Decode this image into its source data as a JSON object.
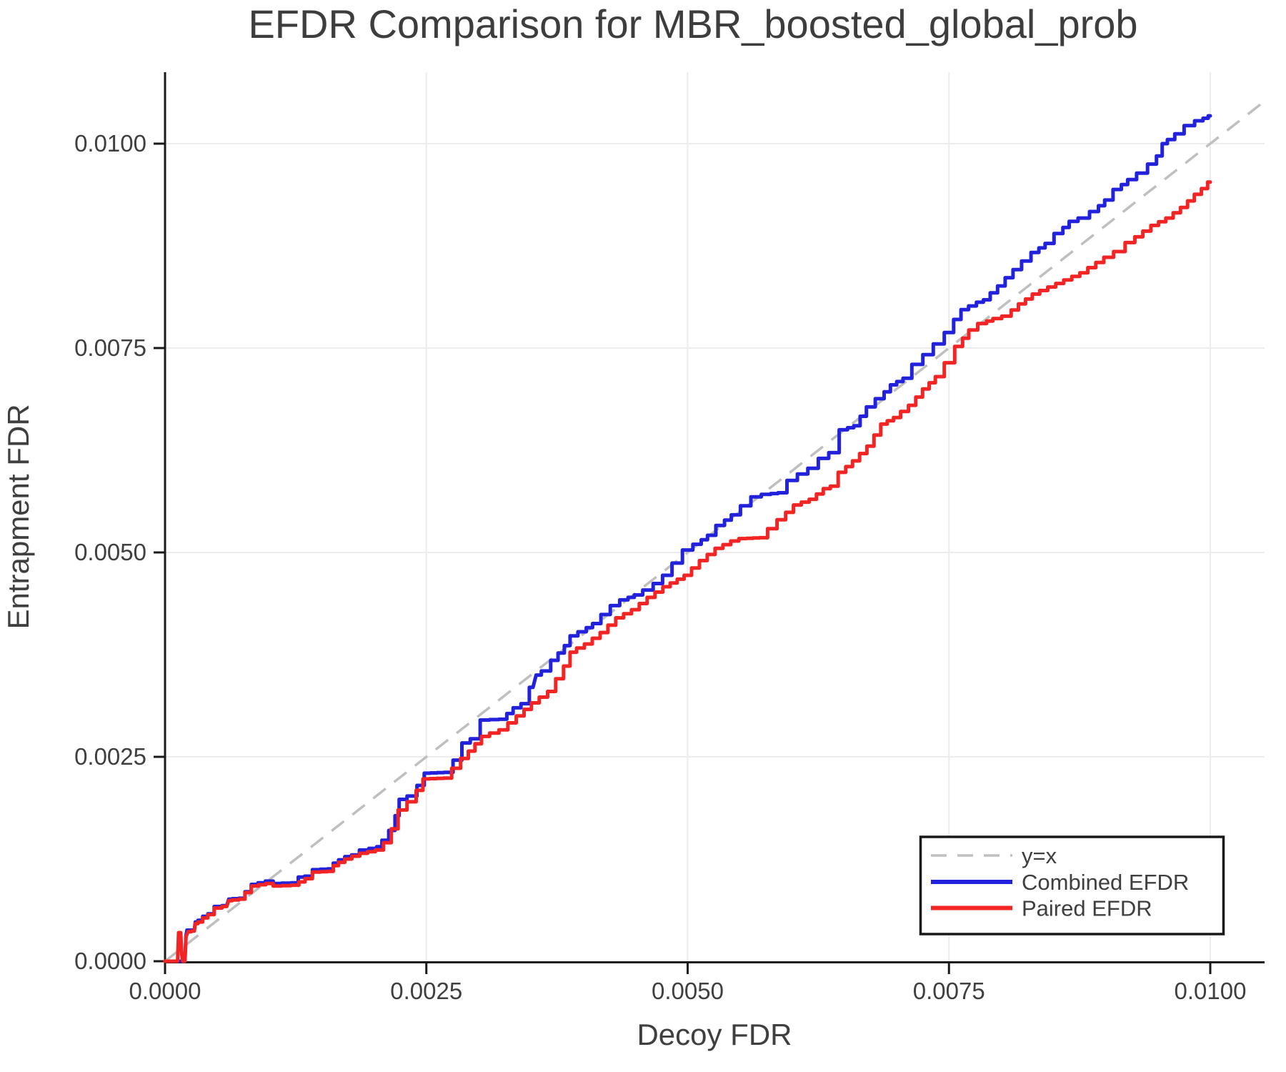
{
  "chart_data": {
    "type": "line",
    "title": "EFDR Comparison for MBR_boosted_global_prob",
    "xlabel": "Decoy FDR",
    "ylabel": "Entrapment FDR",
    "xlim": [
      0,
      0.01052
    ],
    "ylim": [
      0,
      0.01087
    ],
    "grid": true,
    "x_ticks": [
      0,
      0.0025,
      0.005,
      0.0075,
      0.01
    ],
    "x_tick_labels": [
      "0.0000",
      "0.0025",
      "0.0050",
      "0.0075",
      "0.0100"
    ],
    "y_ticks": [
      0,
      0.0025,
      0.005,
      0.0075,
      0.01
    ],
    "y_tick_labels": [
      "0.0000",
      "0.0025",
      "0.0050",
      "0.0075",
      "0.0100"
    ],
    "legend": {
      "position": "bottom-right",
      "entries": [
        {
          "label": "y=x",
          "color": "#bfbfbf",
          "style": "dashed"
        },
        {
          "label": "Combined EFDR",
          "color": "#2222dd",
          "style": "solid"
        },
        {
          "label": "Paired EFDR",
          "color": "#f32424",
          "style": "solid"
        }
      ]
    },
    "colors": {
      "grid": "#ececec",
      "spine": "#1a1a1a",
      "title": "#3d3d3d",
      "tick_label": "#3f3f3f",
      "axis_label": "#3f3f3f",
      "legend_border": "#181818",
      "legend_bg": "#ffffff",
      "reference": "#bfbfbf",
      "combined": "#2222dd",
      "paired": "#f32424"
    },
    "series": [
      {
        "name": "y=x",
        "role": "reference",
        "style": "dashed",
        "color": "#bfbfbf",
        "points": [
          [
            0,
            0
          ],
          [
            0.01052,
            0.01052
          ]
        ]
      },
      {
        "name": "Combined EFDR",
        "role": "data",
        "style": "solid",
        "color": "#2222dd",
        "points": [
          [
            0,
            0
          ],
          [
            0.00019,
            0
          ],
          [
            0.0002,
            0.00031
          ],
          [
            0.00021,
            0.00038
          ],
          [
            0.00028,
            0.00038
          ],
          [
            0.00029,
            0.00048
          ],
          [
            0.00034,
            0.0005
          ],
          [
            0.00038,
            0.00055
          ],
          [
            0.00044,
            0.00058
          ],
          [
            0.0005,
            0.00067
          ],
          [
            0.00059,
            0.00068
          ],
          [
            0.00061,
            0.00076
          ],
          [
            0.00074,
            0.00077
          ],
          [
            0.00079,
            0.00085
          ],
          [
            0.00086,
            0.00094
          ],
          [
            0.00092,
            0.00096
          ],
          [
            0.001,
            0.00098
          ],
          [
            0.00107,
            0.00095
          ],
          [
            0.00125,
            0.00096
          ],
          [
            0.0013,
            0.00103
          ],
          [
            0.00137,
            0.00104
          ],
          [
            0.00145,
            0.00112
          ],
          [
            0.00159,
            0.00113
          ],
          [
            0.00163,
            0.0012
          ],
          [
            0.00175,
            0.00128
          ],
          [
            0.00182,
            0.0013
          ],
          [
            0.0019,
            0.00136
          ],
          [
            0.002,
            0.00138
          ],
          [
            0.00205,
            0.0014
          ],
          [
            0.0021,
            0.00148
          ],
          [
            0.00218,
            0.0016
          ],
          [
            0.00222,
            0.00178
          ],
          [
            0.00226,
            0.00198
          ],
          [
            0.00237,
            0.00202
          ],
          [
            0.00245,
            0.00215
          ],
          [
            0.00251,
            0.0023
          ],
          [
            0.0027,
            0.00231
          ],
          [
            0.00281,
            0.00246
          ],
          [
            0.00287,
            0.00267
          ],
          [
            0.00297,
            0.00272
          ],
          [
            0.00306,
            0.00295
          ],
          [
            0.00324,
            0.00296
          ],
          [
            0.00336,
            0.0031
          ],
          [
            0.00345,
            0.00315
          ],
          [
            0.00352,
            0.00335
          ],
          [
            0.00355,
            0.0035
          ],
          [
            0.00365,
            0.00355
          ],
          [
            0.00373,
            0.00368
          ],
          [
            0.00385,
            0.00386
          ],
          [
            0.0039,
            0.00398
          ],
          [
            0.004,
            0.00403
          ],
          [
            0.00412,
            0.00413
          ],
          [
            0.00422,
            0.00424
          ],
          [
            0.0043,
            0.00435
          ],
          [
            0.0044,
            0.00442
          ],
          [
            0.00452,
            0.00448
          ],
          [
            0.00462,
            0.00454
          ],
          [
            0.00472,
            0.00462
          ],
          [
            0.0048,
            0.00472
          ],
          [
            0.0049,
            0.00487
          ],
          [
            0.005,
            0.00503
          ],
          [
            0.0051,
            0.0051
          ],
          [
            0.00522,
            0.00521
          ],
          [
            0.00532,
            0.00533
          ],
          [
            0.00545,
            0.00546
          ],
          [
            0.00556,
            0.00557
          ],
          [
            0.00565,
            0.00568
          ],
          [
            0.00576,
            0.00571
          ],
          [
            0.0059,
            0.00573
          ],
          [
            0.006,
            0.00588
          ],
          [
            0.0061,
            0.00596
          ],
          [
            0.0062,
            0.00603
          ],
          [
            0.0063,
            0.00615
          ],
          [
            0.0064,
            0.00622
          ],
          [
            0.0065,
            0.0065
          ],
          [
            0.00662,
            0.00655
          ],
          [
            0.00674,
            0.00678
          ],
          [
            0.00685,
            0.00688
          ],
          [
            0.00697,
            0.00705
          ],
          [
            0.00709,
            0.00713
          ],
          [
            0.0072,
            0.0073
          ],
          [
            0.0073,
            0.00742
          ],
          [
            0.0074,
            0.00755
          ],
          [
            0.00751,
            0.00769
          ],
          [
            0.00758,
            0.00785
          ],
          [
            0.00765,
            0.00797
          ],
          [
            0.0078,
            0.00806
          ],
          [
            0.00786,
            0.00809
          ],
          [
            0.008,
            0.00826
          ],
          [
            0.00815,
            0.00846
          ],
          [
            0.00833,
            0.00867
          ],
          [
            0.00845,
            0.00878
          ],
          [
            0.00856,
            0.0089
          ],
          [
            0.00868,
            0.00905
          ],
          [
            0.00879,
            0.00909
          ],
          [
            0.0089,
            0.00917
          ],
          [
            0.00902,
            0.00931
          ],
          [
            0.00912,
            0.00944
          ],
          [
            0.00924,
            0.00956
          ],
          [
            0.00935,
            0.00964
          ],
          [
            0.00945,
            0.00975
          ],
          [
            0.00952,
            0.00985
          ],
          [
            0.00956,
            0.01
          ],
          [
            0.00962,
            0.01005
          ],
          [
            0.0097,
            0.01012
          ],
          [
            0.0098,
            0.01022
          ],
          [
            0.0099,
            0.01028
          ],
          [
            0.00996,
            0.01031
          ],
          [
            0.01,
            0.01034
          ]
        ]
      },
      {
        "name": "Paired EFDR",
        "role": "data",
        "style": "solid",
        "color": "#f32424",
        "points": [
          [
            0,
            0
          ],
          [
            0.00012,
            0
          ],
          [
            0.00013,
            0.00035
          ],
          [
            0.00015,
            0.00035
          ],
          [
            0.00016,
            8e-05
          ],
          [
            0.00017,
            0
          ],
          [
            0.00019,
            0
          ],
          [
            0.0002,
            0.0003
          ],
          [
            0.00022,
            0.00036
          ],
          [
            0.00028,
            0.00037
          ],
          [
            0.00029,
            0.00046
          ],
          [
            0.00034,
            0.00048
          ],
          [
            0.00038,
            0.00053
          ],
          [
            0.00044,
            0.00057
          ],
          [
            0.0005,
            0.00065
          ],
          [
            0.00059,
            0.00067
          ],
          [
            0.00061,
            0.00074
          ],
          [
            0.00074,
            0.00076
          ],
          [
            0.00079,
            0.00084
          ],
          [
            0.00086,
            0.00092
          ],
          [
            0.001,
            0.00095
          ],
          [
            0.00107,
            0.00092
          ],
          [
            0.00125,
            0.00093
          ],
          [
            0.00137,
            0.00101
          ],
          [
            0.00145,
            0.00109
          ],
          [
            0.00159,
            0.0011
          ],
          [
            0.00163,
            0.00117
          ],
          [
            0.00175,
            0.00125
          ],
          [
            0.0019,
            0.00132
          ],
          [
            0.00205,
            0.00136
          ],
          [
            0.00213,
            0.00145
          ],
          [
            0.0022,
            0.00162
          ],
          [
            0.00226,
            0.00185
          ],
          [
            0.00237,
            0.00195
          ],
          [
            0.0025,
            0.00223
          ],
          [
            0.0027,
            0.00224
          ],
          [
            0.00287,
            0.00248
          ],
          [
            0.00306,
            0.00275
          ],
          [
            0.00324,
            0.00283
          ],
          [
            0.0034,
            0.003
          ],
          [
            0.00354,
            0.00316
          ],
          [
            0.0037,
            0.0033
          ],
          [
            0.00385,
            0.00361
          ],
          [
            0.0039,
            0.00378
          ],
          [
            0.00405,
            0.00388
          ],
          [
            0.0042,
            0.00402
          ],
          [
            0.00435,
            0.0042
          ],
          [
            0.0045,
            0.0043
          ],
          [
            0.00465,
            0.00445
          ],
          [
            0.0048,
            0.00458
          ],
          [
            0.005,
            0.00472
          ],
          [
            0.00515,
            0.0049
          ],
          [
            0.0053,
            0.00505
          ],
          [
            0.00545,
            0.00514
          ],
          [
            0.00553,
            0.00517
          ],
          [
            0.00572,
            0.00518
          ],
          [
            0.0059,
            0.0054
          ],
          [
            0.00605,
            0.00558
          ],
          [
            0.0062,
            0.00565
          ],
          [
            0.00633,
            0.00578
          ],
          [
            0.0064,
            0.00581
          ],
          [
            0.00648,
            0.00598
          ],
          [
            0.00661,
            0.00612
          ],
          [
            0.00675,
            0.0063
          ],
          [
            0.00688,
            0.00657
          ],
          [
            0.007,
            0.00665
          ],
          [
            0.00715,
            0.0068
          ],
          [
            0.00728,
            0.007
          ],
          [
            0.0074,
            0.00715
          ],
          [
            0.00751,
            0.00732
          ],
          [
            0.0076,
            0.00752
          ],
          [
            0.00772,
            0.00772
          ],
          [
            0.00783,
            0.0078
          ],
          [
            0.00795,
            0.00786
          ],
          [
            0.00806,
            0.00789
          ],
          [
            0.0082,
            0.00804
          ],
          [
            0.00833,
            0.00816
          ],
          [
            0.00856,
            0.00829
          ],
          [
            0.00879,
            0.00842
          ],
          [
            0.00902,
            0.00861
          ],
          [
            0.00913,
            0.00868
          ],
          [
            0.00924,
            0.00879
          ],
          [
            0.00947,
            0.009
          ],
          [
            0.00961,
            0.00909
          ],
          [
            0.00975,
            0.00922
          ],
          [
            0.00988,
            0.00938
          ],
          [
            0.00995,
            0.00945
          ],
          [
            0.01,
            0.00953
          ]
        ]
      }
    ]
  }
}
